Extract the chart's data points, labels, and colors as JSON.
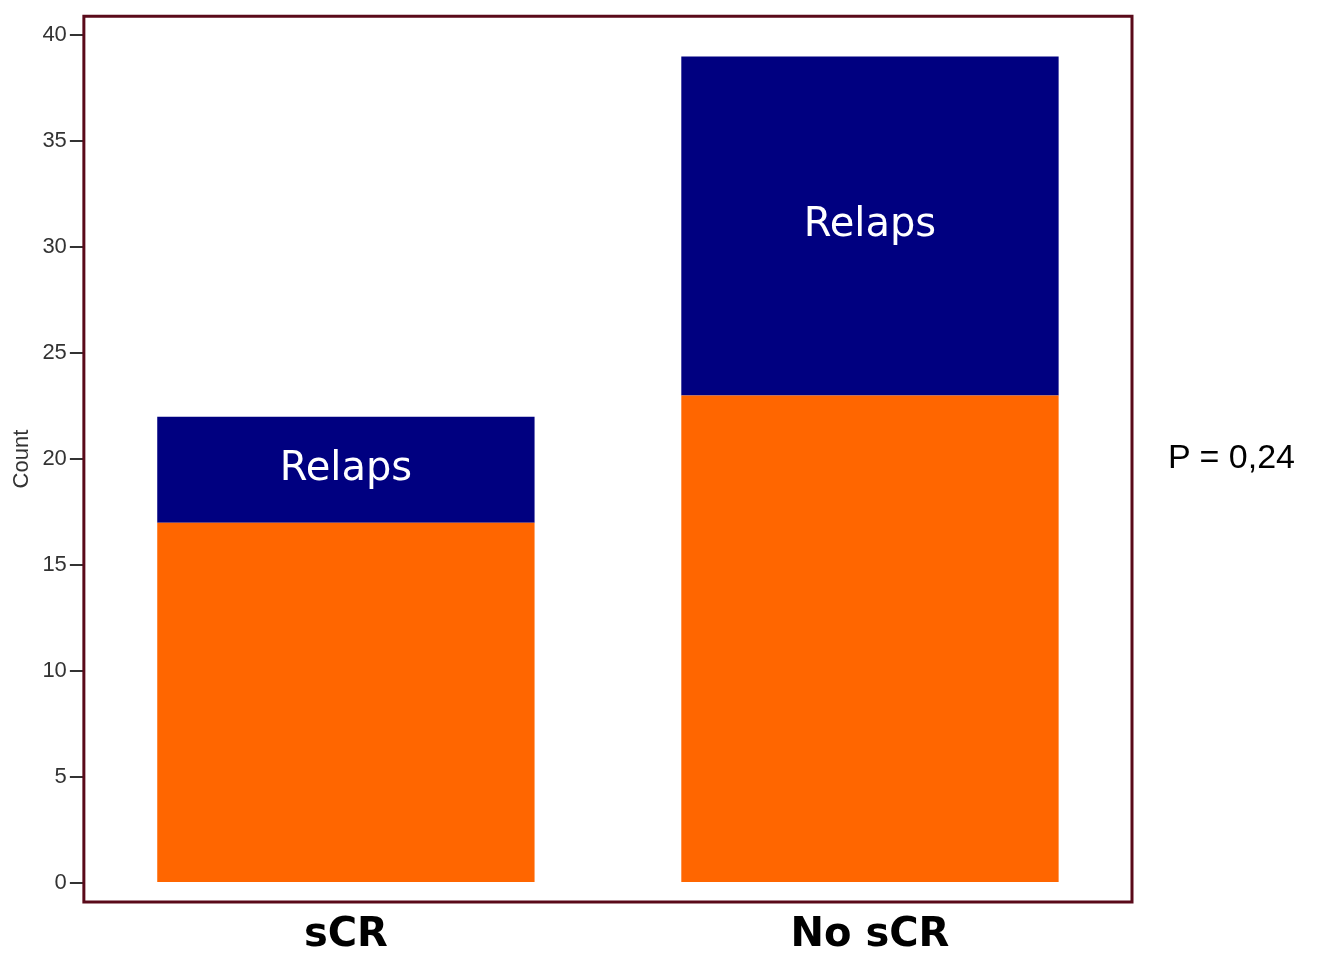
{
  "chart_data": {
    "type": "bar",
    "stacked": true,
    "ylabel": "Count",
    "categories": [
      "sCR",
      "No sCR"
    ],
    "series": [
      {
        "color": "#ff6600",
        "values": [
          17,
          23
        ]
      },
      {
        "name": "Relaps",
        "color": "#000080",
        "values": [
          5,
          16
        ]
      }
    ],
    "ylim": [
      -0.9,
      40.9
    ],
    "yticks": [
      0,
      5,
      10,
      15,
      20,
      25,
      30,
      35,
      40
    ],
    "grid": false,
    "legend": false,
    "annotations": [
      "P = 0,24"
    ]
  }
}
